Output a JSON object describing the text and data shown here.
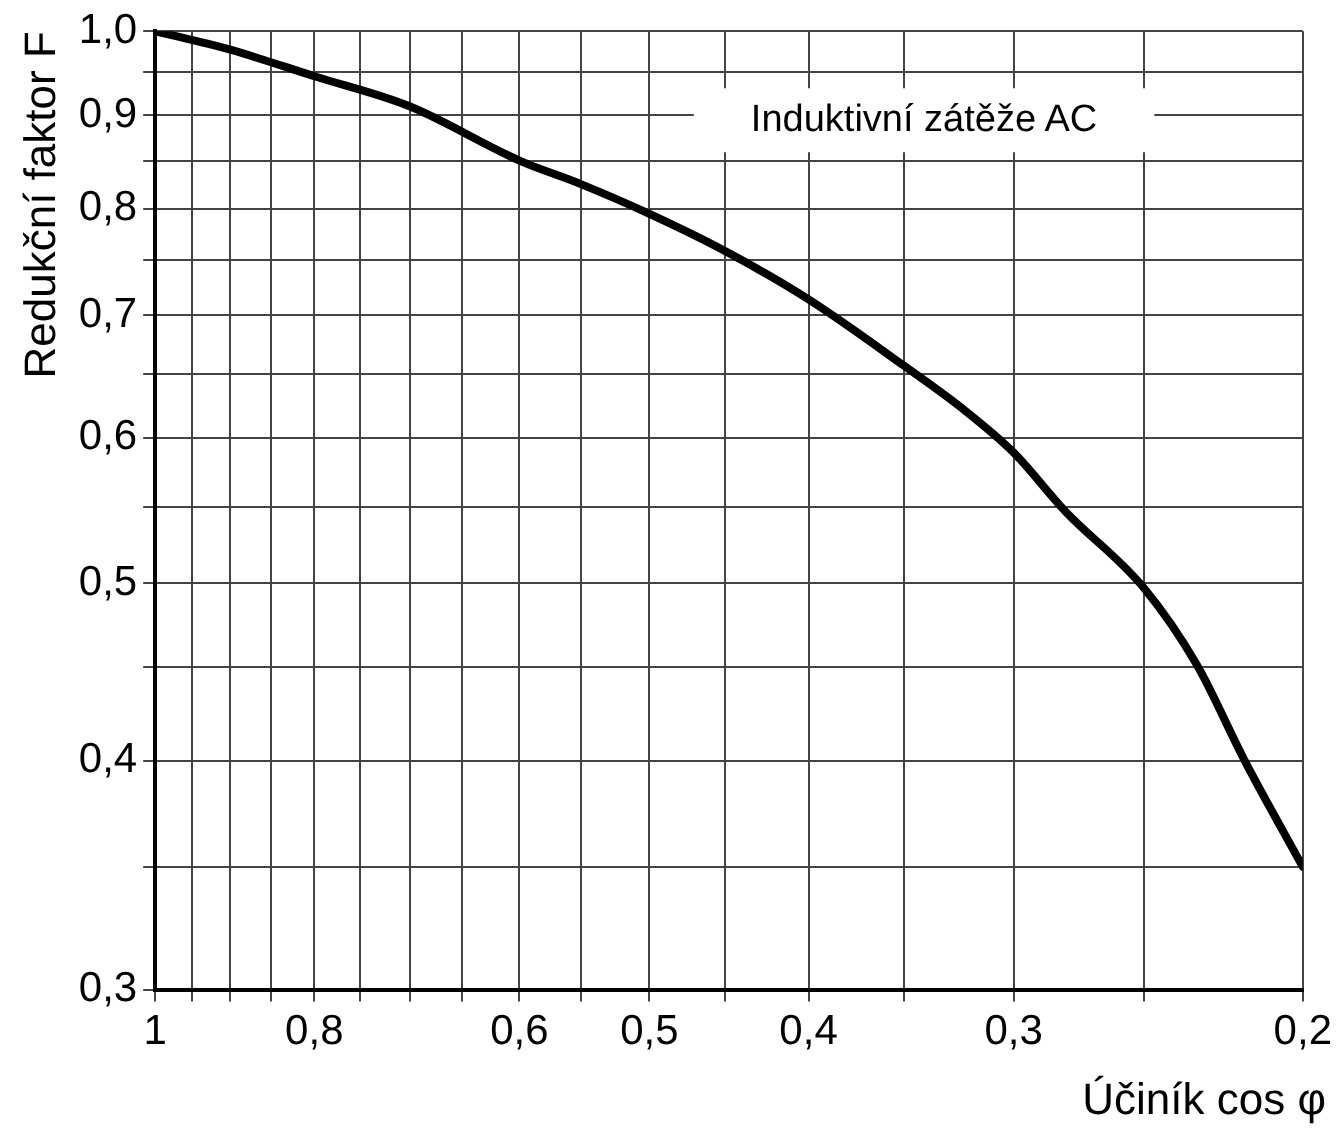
{
  "chart_data": {
    "type": "line",
    "xlabel": "Účiník cos φ",
    "ylabel": "Redukční faktor F",
    "annotations": [
      "Induktivní zátěže AC"
    ],
    "x": [
      1,
      0.9,
      0.8,
      0.7,
      0.6,
      0.55,
      0.5,
      0.45,
      0.4,
      0.35,
      0.322,
      0.3,
      0.279,
      0.25,
      0.232,
      0.217,
      0.2
    ],
    "series": [
      {
        "color": "#000000",
        "values": [
          1.0,
          0.977,
          0.945,
          0.91,
          0.85,
          0.825,
          0.795,
          0.759,
          0.714,
          0.657,
          0.622,
          0.589,
          0.547,
          0.497,
          0.451,
          0.4,
          0.35
        ]
      }
    ],
    "xlim": [
      1,
      0.2
    ],
    "ylim": [
      0.3,
      1.0
    ],
    "xticks": [
      1,
      {
        "value": 0.95,
        "label": null
      },
      {
        "value": 0.9,
        "label": null
      },
      {
        "value": 0.85,
        "label": null
      },
      {
        "value": 0.8,
        "label": "0,8"
      },
      {
        "value": 0.75,
        "label": null
      },
      {
        "value": 0.7,
        "label": null
      },
      {
        "value": 0.65,
        "label": null
      },
      {
        "value": 0.6,
        "label": "0,6"
      },
      {
        "value": 0.55,
        "label": null
      },
      {
        "value": 0.5,
        "label": "0,5"
      },
      {
        "value": 0.45,
        "label": null
      },
      {
        "value": 0.4,
        "label": "0,4"
      },
      {
        "value": 0.35,
        "label": null
      },
      {
        "value": 0.3,
        "label": "0,3"
      },
      {
        "value": 0.25,
        "label": null
      },
      {
        "value": 0.2,
        "label": "0,2"
      }
    ],
    "yticks": [
      {
        "value": 0.3,
        "label": "0,3"
      },
      {
        "value": 0.35,
        "label": null
      },
      {
        "value": 0.4,
        "label": "0,4"
      },
      {
        "value": 0.45,
        "label": null
      },
      {
        "value": 0.5,
        "label": "0,5"
      },
      {
        "value": 0.55,
        "label": null
      },
      {
        "value": 0.6,
        "label": "0,6"
      },
      {
        "value": 0.65,
        "label": null
      },
      {
        "value": 0.7,
        "label": "0,7"
      },
      {
        "value": 0.75,
        "label": null
      },
      {
        "value": 0.8,
        "label": "0,8"
      },
      {
        "value": 0.85,
        "label": null
      },
      {
        "value": 0.9,
        "label": "0,9"
      },
      {
        "value": 0.95,
        "label": null
      },
      {
        "value": 1.0,
        "label": "1,0"
      }
    ],
    "log": "xy",
    "grid": true,
    "marker": "none",
    "line_style": "solid"
  }
}
